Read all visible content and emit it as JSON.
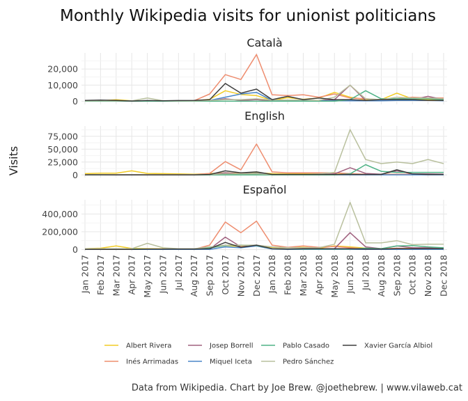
{
  "chart_data": {
    "type": "line",
    "title": "Monthly Wikipedia visits for unionist politicians",
    "ylabel": "Visits",
    "xlabel": "",
    "caption": "Data from Wikipedia. Chart by Joe Brew. @joethebrew. | www.vilaweb.cat",
    "months": [
      "Jan 2017",
      "Feb 2017",
      "Mar 2017",
      "Apr 2017",
      "May 2017",
      "Jun 2017",
      "Jul 2017",
      "Aug 2017",
      "Sep 2017",
      "Oct 2017",
      "Nov 2017",
      "Dec 2017",
      "Jan 2018",
      "Feb 2018",
      "Mar 2018",
      "Apr 2018",
      "May 2018",
      "Jun 2018",
      "Jul 2018",
      "Aug 2018",
      "Sep 2018",
      "Oct 2018",
      "Nov 2018",
      "Dec 2018"
    ],
    "legend_position": "bottom",
    "series_meta": [
      {
        "name": "Albert Rivera",
        "color": "#f2cc24"
      },
      {
        "name": "Inés Arrimadas",
        "color": "#ee8d6f"
      },
      {
        "name": "Josep Borrell",
        "color": "#a0617f"
      },
      {
        "name": "Miquel Iceta",
        "color": "#4a86c8"
      },
      {
        "name": "Pablo Casado",
        "color": "#4fb286"
      },
      {
        "name": "Pedro Sánchez",
        "color": "#b9c09e"
      },
      {
        "name": "Xavier García Albiol",
        "color": "#3d3d3d"
      }
    ],
    "panels": [
      {
        "label": "Català",
        "yticks": [
          0,
          10000,
          20000
        ],
        "ytick_labels": [
          "0",
          "10,000",
          "20,000"
        ],
        "ylim": [
          -2000,
          30000
        ],
        "series": [
          {
            "values": [
              200,
              300,
              900,
              300,
              200,
              200,
              200,
              200,
              1200,
              6500,
              4200,
              3500,
              500,
              2200,
              1200,
              2000,
              5500,
              2500,
              1000,
              1000,
              5000,
              1500,
              1000,
              1000
            ]
          },
          {
            "values": [
              300,
              300,
              300,
              300,
              300,
              300,
              300,
              300,
              4500,
              16500,
              13500,
              29000,
              4000,
              3500,
              4000,
              2500,
              4500,
              2000,
              1500,
              1000,
              1500,
              2500,
              2000,
              2000
            ]
          },
          {
            "values": [
              100,
              100,
              100,
              100,
              100,
              100,
              100,
              100,
              300,
              1500,
              500,
              1000,
              300,
              300,
              300,
              500,
              1000,
              10000,
              500,
              500,
              1000,
              1000,
              3000,
              1000
            ]
          },
          {
            "values": [
              200,
              200,
              200,
              200,
              200,
              200,
              200,
              200,
              500,
              2500,
              4500,
              5500,
              500,
              300,
              300,
              300,
              300,
              300,
              300,
              300,
              500,
              500,
              500,
              300
            ]
          },
          {
            "values": [
              0,
              0,
              0,
              0,
              0,
              0,
              0,
              0,
              0,
              0,
              0,
              0,
              0,
              0,
              0,
              0,
              0,
              1000,
              6500,
              1500,
              1500,
              1500,
              1500,
              1000
            ]
          },
          {
            "values": [
              200,
              300,
              200,
              200,
              2000,
              300,
              200,
              200,
              500,
              1000,
              1000,
              1500,
              700,
              700,
              700,
              500,
              2500,
              10000,
              1500,
              1000,
              2500,
              2000,
              2000,
              1500
            ]
          },
          {
            "values": [
              500,
              700,
              500,
              100,
              400,
              300,
              400,
              500,
              1000,
              11000,
              5000,
              7500,
              1000,
              3000,
              1000,
              2000,
              1000,
              1000,
              500,
              1000,
              1000,
              1000,
              500,
              500
            ]
          }
        ]
      },
      {
        "label": "English",
        "yticks": [
          0,
          25000,
          50000,
          75000
        ],
        "ytick_labels": [
          "0",
          "25,000",
          "50,000",
          "75,000"
        ],
        "ylim": [
          -5000,
          95000
        ],
        "series": [
          {
            "values": [
              2500,
              3500,
              3500,
              8000,
              3000,
              2500,
              2000,
              1500,
              2500,
              4000,
              3000,
              4000,
              2500,
              2000,
              2000,
              2000,
              1500,
              1500,
              1000,
              1000,
              1500,
              1500,
              1000,
              1000
            ]
          },
          {
            "values": [
              500,
              500,
              500,
              500,
              500,
              500,
              500,
              500,
              3000,
              26000,
              10000,
              60000,
              6000,
              4000,
              4000,
              4000,
              4000,
              2500,
              1500,
              1000,
              1500,
              1500,
              1000,
              1000
            ]
          },
          {
            "values": [
              300,
              300,
              300,
              300,
              300,
              300,
              300,
              300,
              500,
              4000,
              2000,
              3000,
              1000,
              1000,
              1000,
              1000,
              2000,
              14000,
              3000,
              1500,
              8000,
              2000,
              2000,
              1500
            ]
          },
          {
            "values": [
              200,
              200,
              200,
              200,
              200,
              200,
              200,
              200,
              300,
              2000,
              2000,
              3000,
              500,
              300,
              300,
              300,
              300,
              300,
              300,
              300,
              300,
              300,
              300,
              300
            ]
          },
          {
            "values": [
              0,
              0,
              0,
              0,
              0,
              0,
              0,
              0,
              0,
              0,
              0,
              0,
              0,
              0,
              0,
              0,
              0,
              2000,
              20000,
              7000,
              5000,
              5000,
              5000,
              5000
            ]
          },
          {
            "values": [
              500,
              500,
              500,
              500,
              500,
              500,
              500,
              500,
              1000,
              2000,
              2000,
              2000,
              1000,
              1000,
              1000,
              2000,
              5000,
              88000,
              30000,
              22000,
              25000,
              22000,
              30000,
              22000
            ]
          },
          {
            "values": [
              200,
              300,
              200,
              200,
              200,
              200,
              200,
              200,
              1000,
              8000,
              4000,
              6000,
              1000,
              1000,
              1000,
              1000,
              1000,
              1000,
              1000,
              1000,
              10000,
              2000,
              1000,
              1000
            ]
          }
        ]
      },
      {
        "label": "Español",
        "yticks": [
          0,
          200000,
          400000
        ],
        "ytick_labels": [
          "0",
          "200,000",
          "400,000"
        ],
        "ylim": [
          -20000,
          560000
        ],
        "series": [
          {
            "values": [
              10000,
              15000,
              40000,
              12000,
              10000,
              8000,
              8000,
              6000,
              20000,
              45000,
              35000,
              45000,
              25000,
              20000,
              25000,
              15000,
              40000,
              30000,
              15000,
              10000,
              10000,
              15000,
              10000,
              10000
            ]
          },
          {
            "values": [
              3000,
              3000,
              3000,
              3000,
              3000,
              3000,
              3000,
              3000,
              50000,
              310000,
              190000,
              320000,
              50000,
              25000,
              40000,
              25000,
              35000,
              20000,
              10000,
              8000,
              15000,
              10000,
              8000,
              8000
            ]
          },
          {
            "values": [
              2000,
              2000,
              2000,
              2000,
              2000,
              2000,
              2000,
              2000,
              5000,
              140000,
              30000,
              50000,
              10000,
              5000,
              5000,
              10000,
              10000,
              190000,
              30000,
              10000,
              40000,
              20000,
              20000,
              10000
            ]
          },
          {
            "values": [
              1000,
              1000,
              1000,
              1000,
              1000,
              1000,
              1000,
              1000,
              2000,
              30000,
              20000,
              40000,
              5000,
              2000,
              2000,
              2000,
              2000,
              2000,
              2000,
              2000,
              2000,
              2000,
              2000,
              2000
            ]
          },
          {
            "values": [
              5000,
              5000,
              5000,
              5000,
              5000,
              5000,
              5000,
              5000,
              20000,
              45000,
              50000,
              45000,
              10000,
              5000,
              5000,
              5000,
              5000,
              5000,
              15000,
              10000,
              40000,
              45000,
              30000,
              20000
            ]
          },
          {
            "values": [
              10000,
              10000,
              10000,
              10000,
              70000,
              20000,
              10000,
              10000,
              30000,
              50000,
              50000,
              50000,
              30000,
              20000,
              20000,
              20000,
              60000,
              530000,
              75000,
              75000,
              100000,
              55000,
              60000,
              60000
            ]
          },
          {
            "values": [
              2000,
              2000,
              2000,
              2000,
              5000,
              5000,
              5000,
              5000,
              10000,
              80000,
              25000,
              50000,
              10000,
              5000,
              10000,
              10000,
              10000,
              10000,
              5000,
              5000,
              10000,
              10000,
              10000,
              10000
            ]
          }
        ]
      }
    ]
  }
}
